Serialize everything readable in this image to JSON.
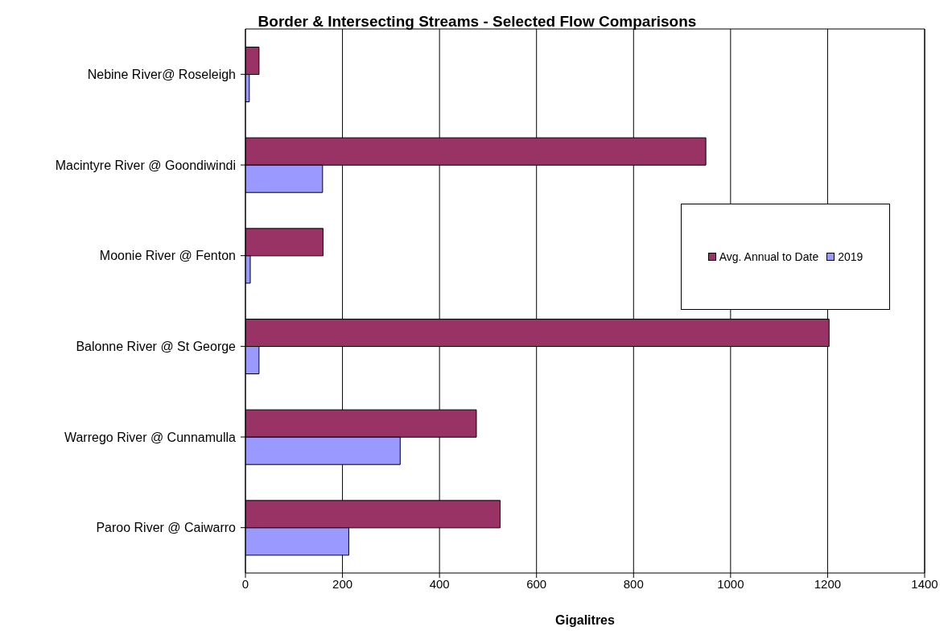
{
  "chart_data": {
    "type": "bar",
    "orientation": "horizontal",
    "title": "Border & Intersecting Streams - Selected Flow Comparisons",
    "xlabel": "Gigalitres",
    "categories": [
      "Nebine River@ Roseleigh",
      "Macintyre River @ Goondiwindi",
      "Moonie River @ Fenton",
      "Balonne River @ St George",
      "Warrego River @ Cunnamulla",
      "Paroo River @ Caiwarro"
    ],
    "series": [
      {
        "name": "Avg. Annual to Date",
        "color": "#993366",
        "values": [
          28,
          949,
          160,
          1203,
          476,
          525
        ]
      },
      {
        "name": "2019",
        "color": "#9999ff",
        "values": [
          8,
          159,
          10,
          28,
          319,
          213
        ]
      }
    ],
    "xlim": [
      0,
      1400
    ],
    "xticks": [
      0,
      200,
      400,
      600,
      800,
      1000,
      1200,
      1400
    ],
    "grid": "x",
    "legend": "right"
  }
}
